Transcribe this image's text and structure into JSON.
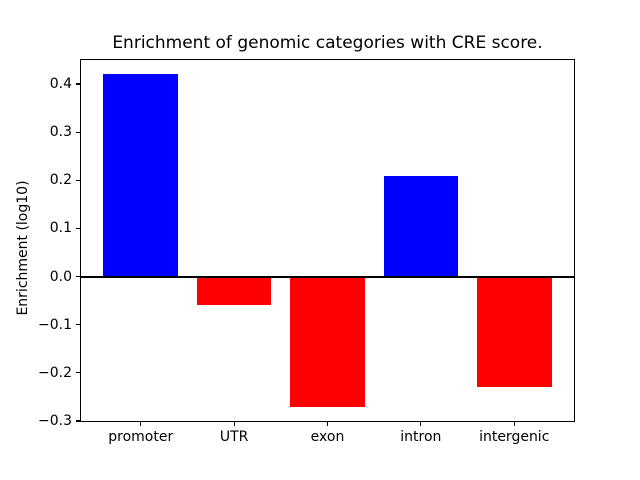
{
  "figure": {
    "background": "#ffffff"
  },
  "chart_data": {
    "type": "bar",
    "title": "Enrichment of genomic categories with CRE score.",
    "xlabel": "",
    "ylabel": "Enrichment (log10)",
    "categories": [
      "promoter",
      "UTR",
      "exon",
      "intron",
      "intergenic"
    ],
    "values": [
      0.42,
      -0.06,
      -0.27,
      0.21,
      -0.23
    ],
    "bar_colors": [
      "#0000ff",
      "#ff0000",
      "#ff0000",
      "#0000ff",
      "#ff0000"
    ],
    "positive_color": "#0000ff",
    "negative_color": "#ff0000",
    "axis_color": "#000000",
    "ylim": [
      -0.3,
      0.45
    ],
    "ytick_values": [
      0.4,
      0.3,
      0.2,
      0.1,
      0.0,
      -0.1,
      -0.2,
      -0.3
    ],
    "ytick_labels": [
      "0.4",
      "0.3",
      "0.2",
      "0.1",
      "0.0",
      "−0.1",
      "−0.2",
      "−0.3"
    ],
    "bar_width_fraction": 0.8,
    "zero_line": true,
    "grid": false,
    "legend": false
  }
}
